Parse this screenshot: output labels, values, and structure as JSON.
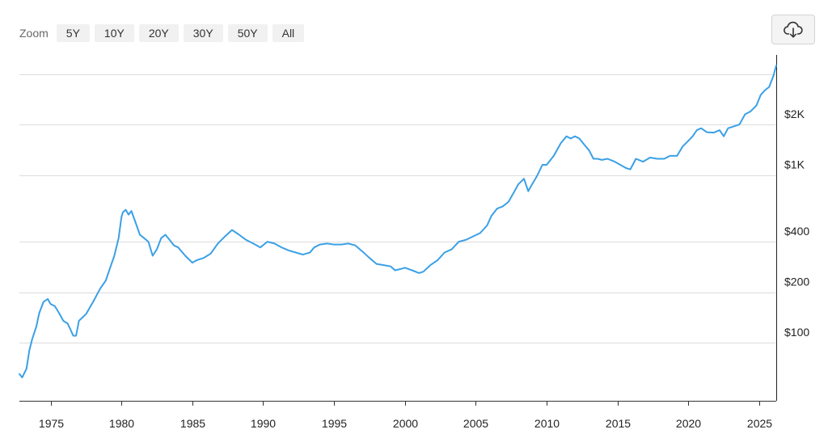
{
  "toolbar": {
    "zoom_label": "Zoom",
    "zoom_options": [
      "5Y",
      "10Y",
      "20Y",
      "30Y",
      "50Y",
      "All"
    ],
    "download_icon": "cloud-download-icon"
  },
  "chart_data": {
    "type": "line",
    "title": "",
    "xlabel": "",
    "ylabel": "",
    "x_scale": "time",
    "y_scale": "log",
    "xlim": [
      1972.8,
      2026.2
    ],
    "ylim": [
      45,
      5200
    ],
    "grid": {
      "x": false,
      "y": true
    },
    "y_gridlines": [
      100,
      200,
      400,
      1000,
      2000,
      4000
    ],
    "x_ticks": [
      1975,
      1980,
      1985,
      1990,
      1995,
      2000,
      2005,
      2010,
      2015,
      2020,
      2025
    ],
    "x_tick_labels": [
      "1975",
      "1980",
      "1985",
      "1990",
      "1995",
      "2000",
      "2005",
      "2010",
      "2015",
      "2020",
      "2025"
    ],
    "y_ticks": [
      100,
      200,
      400,
      1000,
      2000
    ],
    "y_tick_labels": [
      "$100",
      "$200",
      "$400",
      "$1K",
      "$2K"
    ],
    "line_color": "#3aa0e6",
    "series": [
      {
        "x": [
          1972.8,
          1973.0,
          1973.3,
          1973.5,
          1973.7,
          1974.0,
          1974.2,
          1974.5,
          1974.8,
          1975.0,
          1975.3,
          1975.6,
          1975.9,
          1976.2,
          1976.4,
          1976.6,
          1976.8,
          1977.0,
          1977.5,
          1978.0,
          1978.5,
          1978.9,
          1979.2,
          1979.5,
          1979.8,
          1980.0,
          1980.1,
          1980.3,
          1980.5,
          1980.7,
          1981.0,
          1981.3,
          1981.6,
          1981.9,
          1982.2,
          1982.5,
          1982.8,
          1983.1,
          1983.4,
          1983.7,
          1984.0,
          1984.5,
          1985.0,
          1985.3,
          1985.8,
          1986.3,
          1986.8,
          1987.3,
          1987.8,
          1988.3,
          1988.8,
          1989.3,
          1989.8,
          1990.3,
          1990.8,
          1991.3,
          1991.8,
          1992.3,
          1992.8,
          1993.3,
          1993.6,
          1994.0,
          1994.5,
          1995.0,
          1995.5,
          1996.0,
          1996.5,
          1997.0,
          1997.5,
          1998.0,
          1998.5,
          1999.0,
          1999.3,
          1999.7,
          2000.0,
          2000.5,
          2001.0,
          2001.3,
          2001.8,
          2002.3,
          2002.8,
          2003.3,
          2003.8,
          2004.3,
          2004.8,
          2005.3,
          2005.8,
          2006.1,
          2006.5,
          2006.9,
          2007.3,
          2007.7,
          2008.0,
          2008.4,
          2008.7,
          2008.9,
          2009.3,
          2009.7,
          2010.0,
          2010.5,
          2011.0,
          2011.4,
          2011.7,
          2012.0,
          2012.3,
          2012.7,
          2013.0,
          2013.3,
          2013.6,
          2013.9,
          2014.3,
          2014.8,
          2015.2,
          2015.6,
          2015.9,
          2016.3,
          2016.8,
          2017.3,
          2017.8,
          2018.3,
          2018.7,
          2019.2,
          2019.6,
          2020.0,
          2020.3,
          2020.6,
          2020.9,
          2021.3,
          2021.8,
          2022.2,
          2022.5,
          2022.8,
          2023.2,
          2023.6,
          2024.0,
          2024.4,
          2024.8,
          2025.1,
          2025.4,
          2025.7,
          2026.0,
          2026.2
        ],
        "y": [
          65,
          62,
          70,
          90,
          105,
          125,
          150,
          175,
          182,
          170,
          165,
          150,
          135,
          130,
          120,
          110,
          110,
          135,
          148,
          175,
          210,
          235,
          280,
          330,
          420,
          560,
          600,
          620,
          580,
          610,
          520,
          440,
          420,
          400,
          330,
          360,
          420,
          440,
          410,
          380,
          370,
          330,
          300,
          310,
          320,
          340,
          390,
          430,
          470,
          440,
          410,
          390,
          370,
          400,
          390,
          370,
          355,
          345,
          335,
          345,
          370,
          385,
          390,
          385,
          385,
          390,
          380,
          350,
          320,
          295,
          290,
          285,
          270,
          275,
          280,
          270,
          260,
          265,
          290,
          310,
          345,
          360,
          400,
          410,
          430,
          450,
          500,
          570,
          630,
          650,
          690,
          790,
          880,
          950,
          800,
          860,
          980,
          1150,
          1150,
          1300,
          1550,
          1700,
          1650,
          1700,
          1650,
          1500,
          1400,
          1250,
          1250,
          1230,
          1250,
          1200,
          1150,
          1100,
          1080,
          1250,
          1200,
          1270,
          1250,
          1250,
          1300,
          1300,
          1480,
          1600,
          1700,
          1850,
          1900,
          1800,
          1790,
          1850,
          1700,
          1900,
          1950,
          2000,
          2300,
          2400,
          2600,
          3000,
          3200,
          3350,
          3900,
          4500
        ]
      }
    ]
  }
}
